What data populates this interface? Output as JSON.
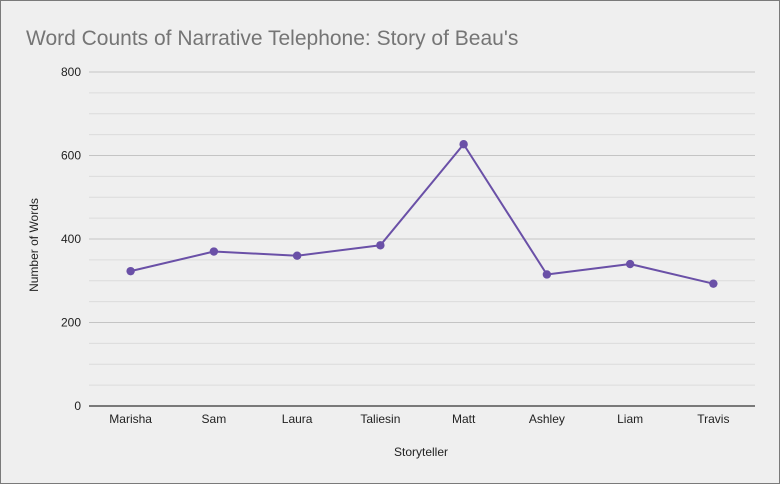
{
  "chart_data": {
    "type": "line",
    "title": "Word Counts of Narrative Telephone: Story of Beau's",
    "xlabel": "Storyteller",
    "ylabel": "Number of Words",
    "categories": [
      "Marisha",
      "Sam",
      "Laura",
      "Taliesin",
      "Matt",
      "Ashley",
      "Liam",
      "Travis"
    ],
    "series": [
      {
        "values": [
          323,
          370,
          360,
          385,
          627,
          315,
          340,
          293
        ]
      }
    ],
    "ylim": [
      0,
      800
    ],
    "yticks": [
      0,
      200,
      400,
      600,
      800
    ],
    "minor_gridlines": true,
    "legend": "none",
    "colors": {
      "line": "#6a50a7",
      "background": "#efefef",
      "major_grid": "#c4c4c4",
      "minor_grid": "#dcdcdc",
      "title": "#757575"
    }
  }
}
